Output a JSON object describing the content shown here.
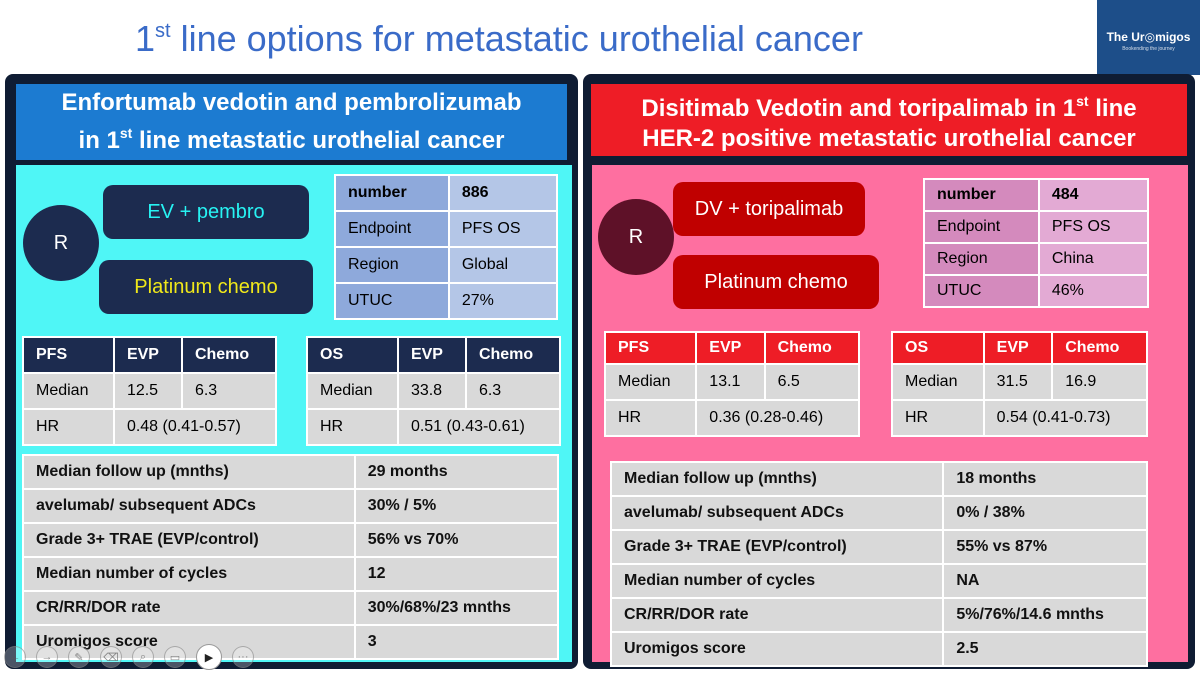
{
  "slide": {
    "title_pre": "1",
    "title_sup": "st",
    "title_post": " line options for metastatic urothelial cancer",
    "logo": {
      "brand": "The Ur◎migos",
      "tagline": "Bookending the journey"
    }
  },
  "left": {
    "header_line1": "Enfortumab vedotin and pembrolizumab",
    "header_line2_pre": "in 1",
    "header_line2_sup": "st",
    "header_line2_post": " line metastatic urothelial cancer",
    "randomize": "R",
    "arm1": "EV + pembro",
    "arm2": "Platinum chemo",
    "trial": [
      {
        "label": "number",
        "value": "886"
      },
      {
        "label": "Endpoint",
        "value": "PFS OS"
      },
      {
        "label": "Region",
        "value": "Global"
      },
      {
        "label": "UTUC",
        "value": "27%"
      }
    ],
    "pfs": {
      "h": [
        "PFS",
        "EVP",
        "Chemo"
      ],
      "median": [
        "Median",
        "12.5",
        "6.3"
      ],
      "hr": [
        "HR",
        "0.48 (0.41-0.57)"
      ]
    },
    "os": {
      "h": [
        "OS",
        "EVP",
        "Chemo"
      ],
      "median": [
        "Median",
        "33.8",
        "6.3"
      ],
      "hr": [
        "HR",
        "0.51 (0.43-0.61)"
      ]
    },
    "summary": [
      {
        "label": "Median follow up (mnths)",
        "value": "29 months"
      },
      {
        "label": "avelumab/ subsequent ADCs",
        "value": "30% / 5%"
      },
      {
        "label": "Grade 3+ TRAE (EVP/control)",
        "value": "56% vs 70%"
      },
      {
        "label": "Median number of cycles",
        "value": "12"
      },
      {
        "label": "CR/RR/DOR rate",
        "value": "30%/68%/23 mnths"
      },
      {
        "label": "Uromigos score",
        "value": "3"
      }
    ]
  },
  "right": {
    "header_line1_pre": "Disitimab Vedotin and toripalimab in 1",
    "header_line1_sup": "st",
    "header_line1_post": " line",
    "header_line2": "HER-2 positive metastatic urothelial cancer",
    "randomize": "R",
    "arm1": "DV + toripalimab",
    "arm2": "Platinum chemo",
    "trial": [
      {
        "label": "number",
        "value": "484"
      },
      {
        "label": "Endpoint",
        "value": "PFS OS"
      },
      {
        "label": "Region",
        "value": "China"
      },
      {
        "label": "UTUC",
        "value": "46%"
      }
    ],
    "pfs": {
      "h": [
        "PFS",
        "EVP",
        "Chemo"
      ],
      "median": [
        "Median",
        "13.1",
        "6.5"
      ],
      "hr": [
        "HR",
        "0.36 (0.28-0.46)"
      ]
    },
    "os": {
      "h": [
        "OS",
        "EVP",
        "Chemo"
      ],
      "median": [
        "Median",
        "31.5",
        "16.9"
      ],
      "hr": [
        "HR",
        "0.54 (0.41-0.73)"
      ]
    },
    "summary": [
      {
        "label": "Median follow up (mnths)",
        "value": "18 months"
      },
      {
        "label": "avelumab/ subsequent ADCs",
        "value": "0% / 38%"
      },
      {
        "label": "Grade 3+ TRAE (EVP/control)",
        "value": "55% vs 87%"
      },
      {
        "label": "Median number of cycles",
        "value": "NA"
      },
      {
        "label": "CR/RR/DOR rate",
        "value": "5%/76%/14.6 mnths"
      },
      {
        "label": "Uromigos score",
        "value": "2.5"
      }
    ]
  },
  "toolbar": {
    "buttons": [
      {
        "name": "previous-slide-icon",
        "glyph": "←"
      },
      {
        "name": "next-slide-icon",
        "glyph": "→"
      },
      {
        "name": "pen-icon",
        "glyph": "✎"
      },
      {
        "name": "eraser-icon",
        "glyph": "⌫"
      },
      {
        "name": "zoom-icon",
        "glyph": "⌕"
      },
      {
        "name": "subtitles-icon",
        "glyph": "▭"
      },
      {
        "name": "camera-icon",
        "glyph": "▶"
      },
      {
        "name": "more-options-icon",
        "glyph": "···"
      }
    ]
  },
  "colors": {
    "title": "#3a6bc8",
    "left_header": "#1c7bd1",
    "left_bg": "#4ff6f6",
    "left_arm": "#1c2b4f",
    "left_arm2_text": "#f0e81a",
    "left_arm1_text": "#27f3f3",
    "left_th": "#1c2b4f",
    "left_trial_label": "#8ea9db",
    "left_trial_value": "#b4c6e7",
    "right_header": "#ee1d26",
    "right_bg": "#fe6fa0",
    "right_circle": "#5e1128",
    "right_arm": "#c00000",
    "right_th": "#ee1d26",
    "right_trial_label": "#d48abd",
    "right_trial_value": "#e3aad4",
    "cell": "#d9d9d9"
  }
}
